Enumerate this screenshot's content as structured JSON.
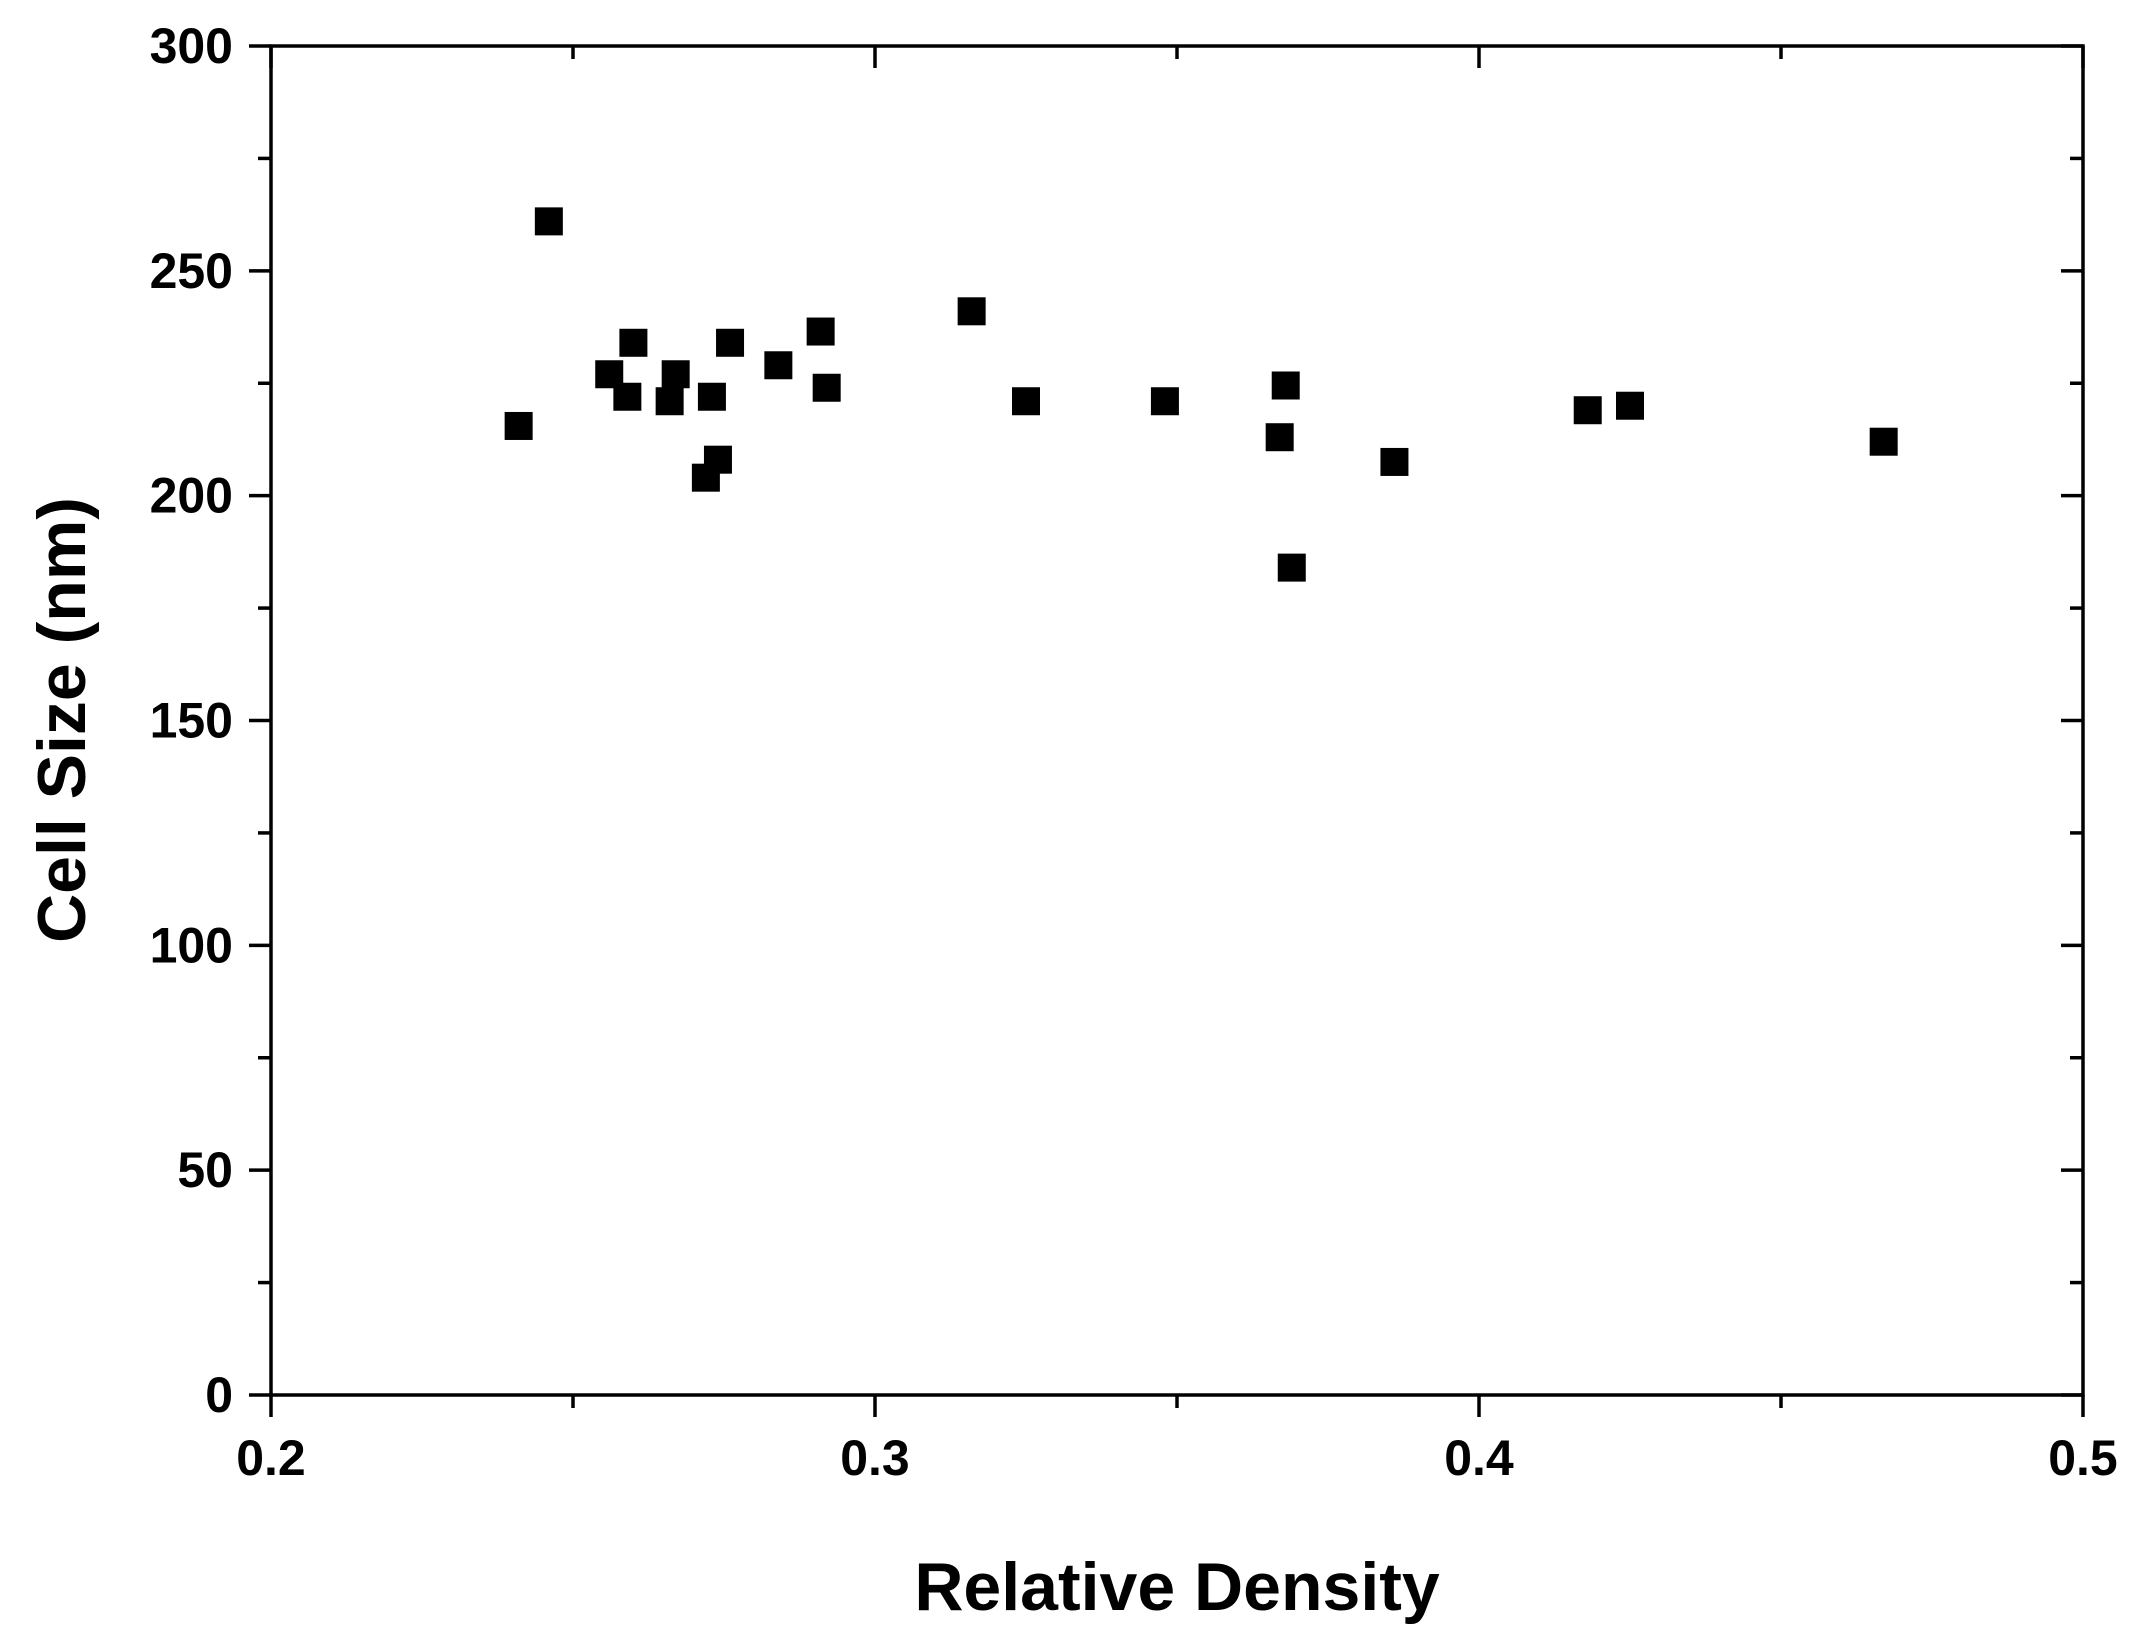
{
  "chart_data": {
    "type": "scatter",
    "title": "",
    "xlabel": "Relative Density",
    "ylabel": "Cell Size (nm)",
    "xlim": [
      0.2,
      0.5
    ],
    "ylim": [
      0,
      300
    ],
    "x_ticks": [
      0.2,
      0.3,
      0.4,
      0.5
    ],
    "x_tick_labels": [
      "0.2",
      "0.3",
      "0.4",
      "0.5"
    ],
    "x_minor_ticks": [
      0.25,
      0.35,
      0.45
    ],
    "y_ticks": [
      0,
      50,
      100,
      150,
      200,
      250,
      300
    ],
    "y_tick_labels": [
      "0",
      "50",
      "100",
      "150",
      "200",
      "250",
      "300"
    ],
    "y_minor_ticks": [
      25,
      75,
      125,
      175,
      225,
      275
    ],
    "grid": false,
    "legend": "none",
    "marker": "square",
    "marker_color": "#000000",
    "series": [
      {
        "points": [
          {
            "x": 0.241,
            "y": 215.5
          },
          {
            "x": 0.246,
            "y": 261
          },
          {
            "x": 0.256,
            "y": 227
          },
          {
            "x": 0.259,
            "y": 222
          },
          {
            "x": 0.26,
            "y": 234
          },
          {
            "x": 0.266,
            "y": 221
          },
          {
            "x": 0.267,
            "y": 227
          },
          {
            "x": 0.272,
            "y": 204
          },
          {
            "x": 0.273,
            "y": 222
          },
          {
            "x": 0.274,
            "y": 208
          },
          {
            "x": 0.276,
            "y": 234
          },
          {
            "x": 0.284,
            "y": 229
          },
          {
            "x": 0.291,
            "y": 236.5
          },
          {
            "x": 0.292,
            "y": 224
          },
          {
            "x": 0.316,
            "y": 241
          },
          {
            "x": 0.325,
            "y": 221
          },
          {
            "x": 0.348,
            "y": 221
          },
          {
            "x": 0.367,
            "y": 213
          },
          {
            "x": 0.368,
            "y": 224.5
          },
          {
            "x": 0.369,
            "y": 184
          },
          {
            "x": 0.386,
            "y": 207.5
          },
          {
            "x": 0.418,
            "y": 219
          },
          {
            "x": 0.425,
            "y": 220
          },
          {
            "x": 0.467,
            "y": 212
          }
        ]
      }
    ]
  }
}
